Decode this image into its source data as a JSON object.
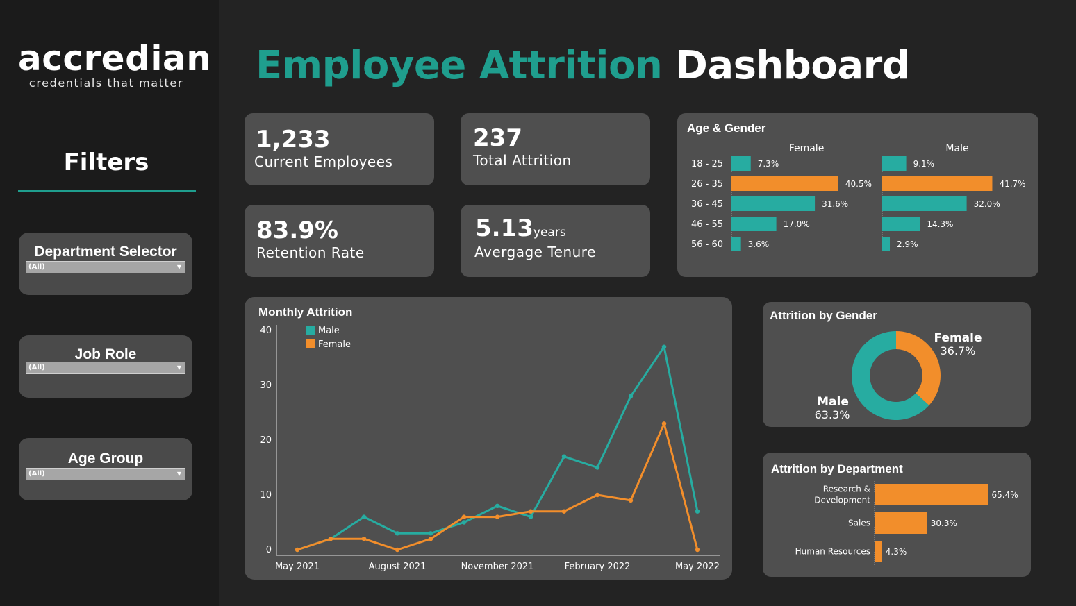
{
  "brand": {
    "name": "accredian",
    "tagline": "credentials that matter"
  },
  "title": {
    "part1": "Employee Attrition",
    "part2": "Dashboard"
  },
  "colors": {
    "teal": "#27aca1",
    "orange": "#f28e2b",
    "background": "#232323",
    "card": "#4f4f4f"
  },
  "filters": {
    "title": "Filters",
    "items": [
      {
        "label": "Department Selector",
        "value": "(All)"
      },
      {
        "label": "Job Role",
        "value": "(All)"
      },
      {
        "label": "Age Group",
        "value": "(All)"
      }
    ]
  },
  "kpis": {
    "current_employees": {
      "value": "1,233",
      "label": "Current Employees"
    },
    "total_attrition": {
      "value": "237",
      "label": "Total Attrition"
    },
    "retention_rate": {
      "value": "83.9%",
      "label": "Retention Rate"
    },
    "average_tenure": {
      "value": "5.13",
      "unit": "years",
      "label": "Avergage Tenure"
    }
  },
  "chart_data": [
    {
      "type": "bar",
      "title": "Age & Gender",
      "orientation": "horizontal",
      "categories": [
        "18 - 25",
        "26 - 35",
        "36 - 45",
        "46 - 55",
        "56 - 60"
      ],
      "series": [
        {
          "name": "Female",
          "values": [
            7.3,
            40.5,
            31.6,
            17.0,
            3.6
          ],
          "labels": [
            "7.3%",
            "40.5%",
            "31.6%",
            "17.0%",
            "3.6%"
          ]
        },
        {
          "name": "Male",
          "values": [
            9.1,
            41.7,
            32.0,
            14.3,
            2.9
          ],
          "labels": [
            "9.1%",
            "41.7%",
            "32.0%",
            "14.3%",
            "2.9%"
          ]
        }
      ],
      "highlight_category": "26 - 35"
    },
    {
      "type": "line",
      "title": "Monthly Attrition",
      "x": [
        "May 2021",
        "Jun 2021",
        "Jul 2021",
        "Aug 2021",
        "Sep 2021",
        "Oct 2021",
        "Nov 2021",
        "Dec 2021",
        "Jan 2022",
        "Feb 2022",
        "Mar 2022",
        "Apr 2022",
        "May 2022"
      ],
      "xticks": [
        "May 2021",
        "August 2021",
        "November 2021",
        "February 2022",
        "May 2022"
      ],
      "yticks": [
        "0",
        "10",
        "20",
        "30",
        "40"
      ],
      "ylim": [
        0,
        40
      ],
      "series": [
        {
          "name": "Male",
          "color": "#27aca1",
          "values": [
            0,
            2,
            6,
            3,
            3,
            5,
            8,
            6,
            17,
            15,
            28,
            37,
            7
          ]
        },
        {
          "name": "Female",
          "color": "#f28e2b",
          "values": [
            0,
            2,
            2,
            0,
            2,
            6,
            6,
            7,
            7,
            10,
            9,
            23,
            0
          ]
        }
      ],
      "legend": "top-left"
    },
    {
      "type": "pie",
      "title": "Attrition by Gender",
      "donut": true,
      "slices": [
        {
          "name": "Female",
          "value": 36.7,
          "label": "36.7%",
          "color": "#f28e2b"
        },
        {
          "name": "Male",
          "value": 63.3,
          "label": "63.3%",
          "color": "#27aca1"
        }
      ]
    },
    {
      "type": "bar",
      "title": "Attrition by Department",
      "orientation": "horizontal",
      "categories": [
        "Research & Development",
        "Sales",
        "Human Resources"
      ],
      "category_lines": [
        [
          "Research &",
          "Development"
        ],
        [
          "Sales"
        ],
        [
          "Human Resources"
        ]
      ],
      "values": [
        65.4,
        30.3,
        4.3
      ],
      "labels": [
        "65.4%",
        "30.3%",
        "4.3%"
      ],
      "color": "#f28e2b"
    }
  ]
}
